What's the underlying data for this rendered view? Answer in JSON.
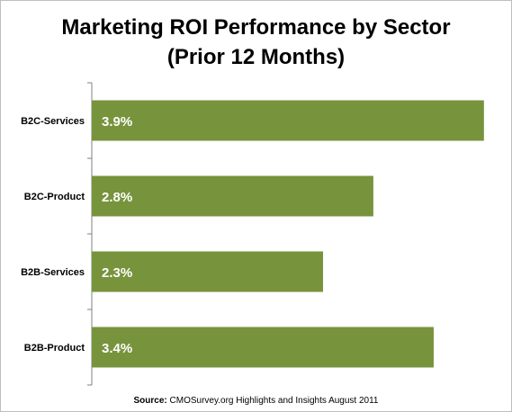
{
  "chart_data": {
    "type": "bar",
    "orientation": "horizontal",
    "title_line1": "Marketing ROI Performance by Sector",
    "title_line2": "(Prior 12 Months)",
    "categories": [
      "B2C-Services",
      "B2C-Product",
      "B2B-Services",
      "B2B-Product"
    ],
    "values": [
      3.9,
      2.8,
      2.3,
      3.4
    ],
    "data_labels": [
      "3.9%",
      "2.8%",
      "2.3%",
      "3.4%"
    ],
    "xlim": [
      0,
      4
    ],
    "grid": false,
    "legend": "none",
    "bar_color": "#77933c"
  },
  "source": {
    "label": "Source:",
    "text": "CMOSurvey.org Highlights and Insights August 2011"
  }
}
